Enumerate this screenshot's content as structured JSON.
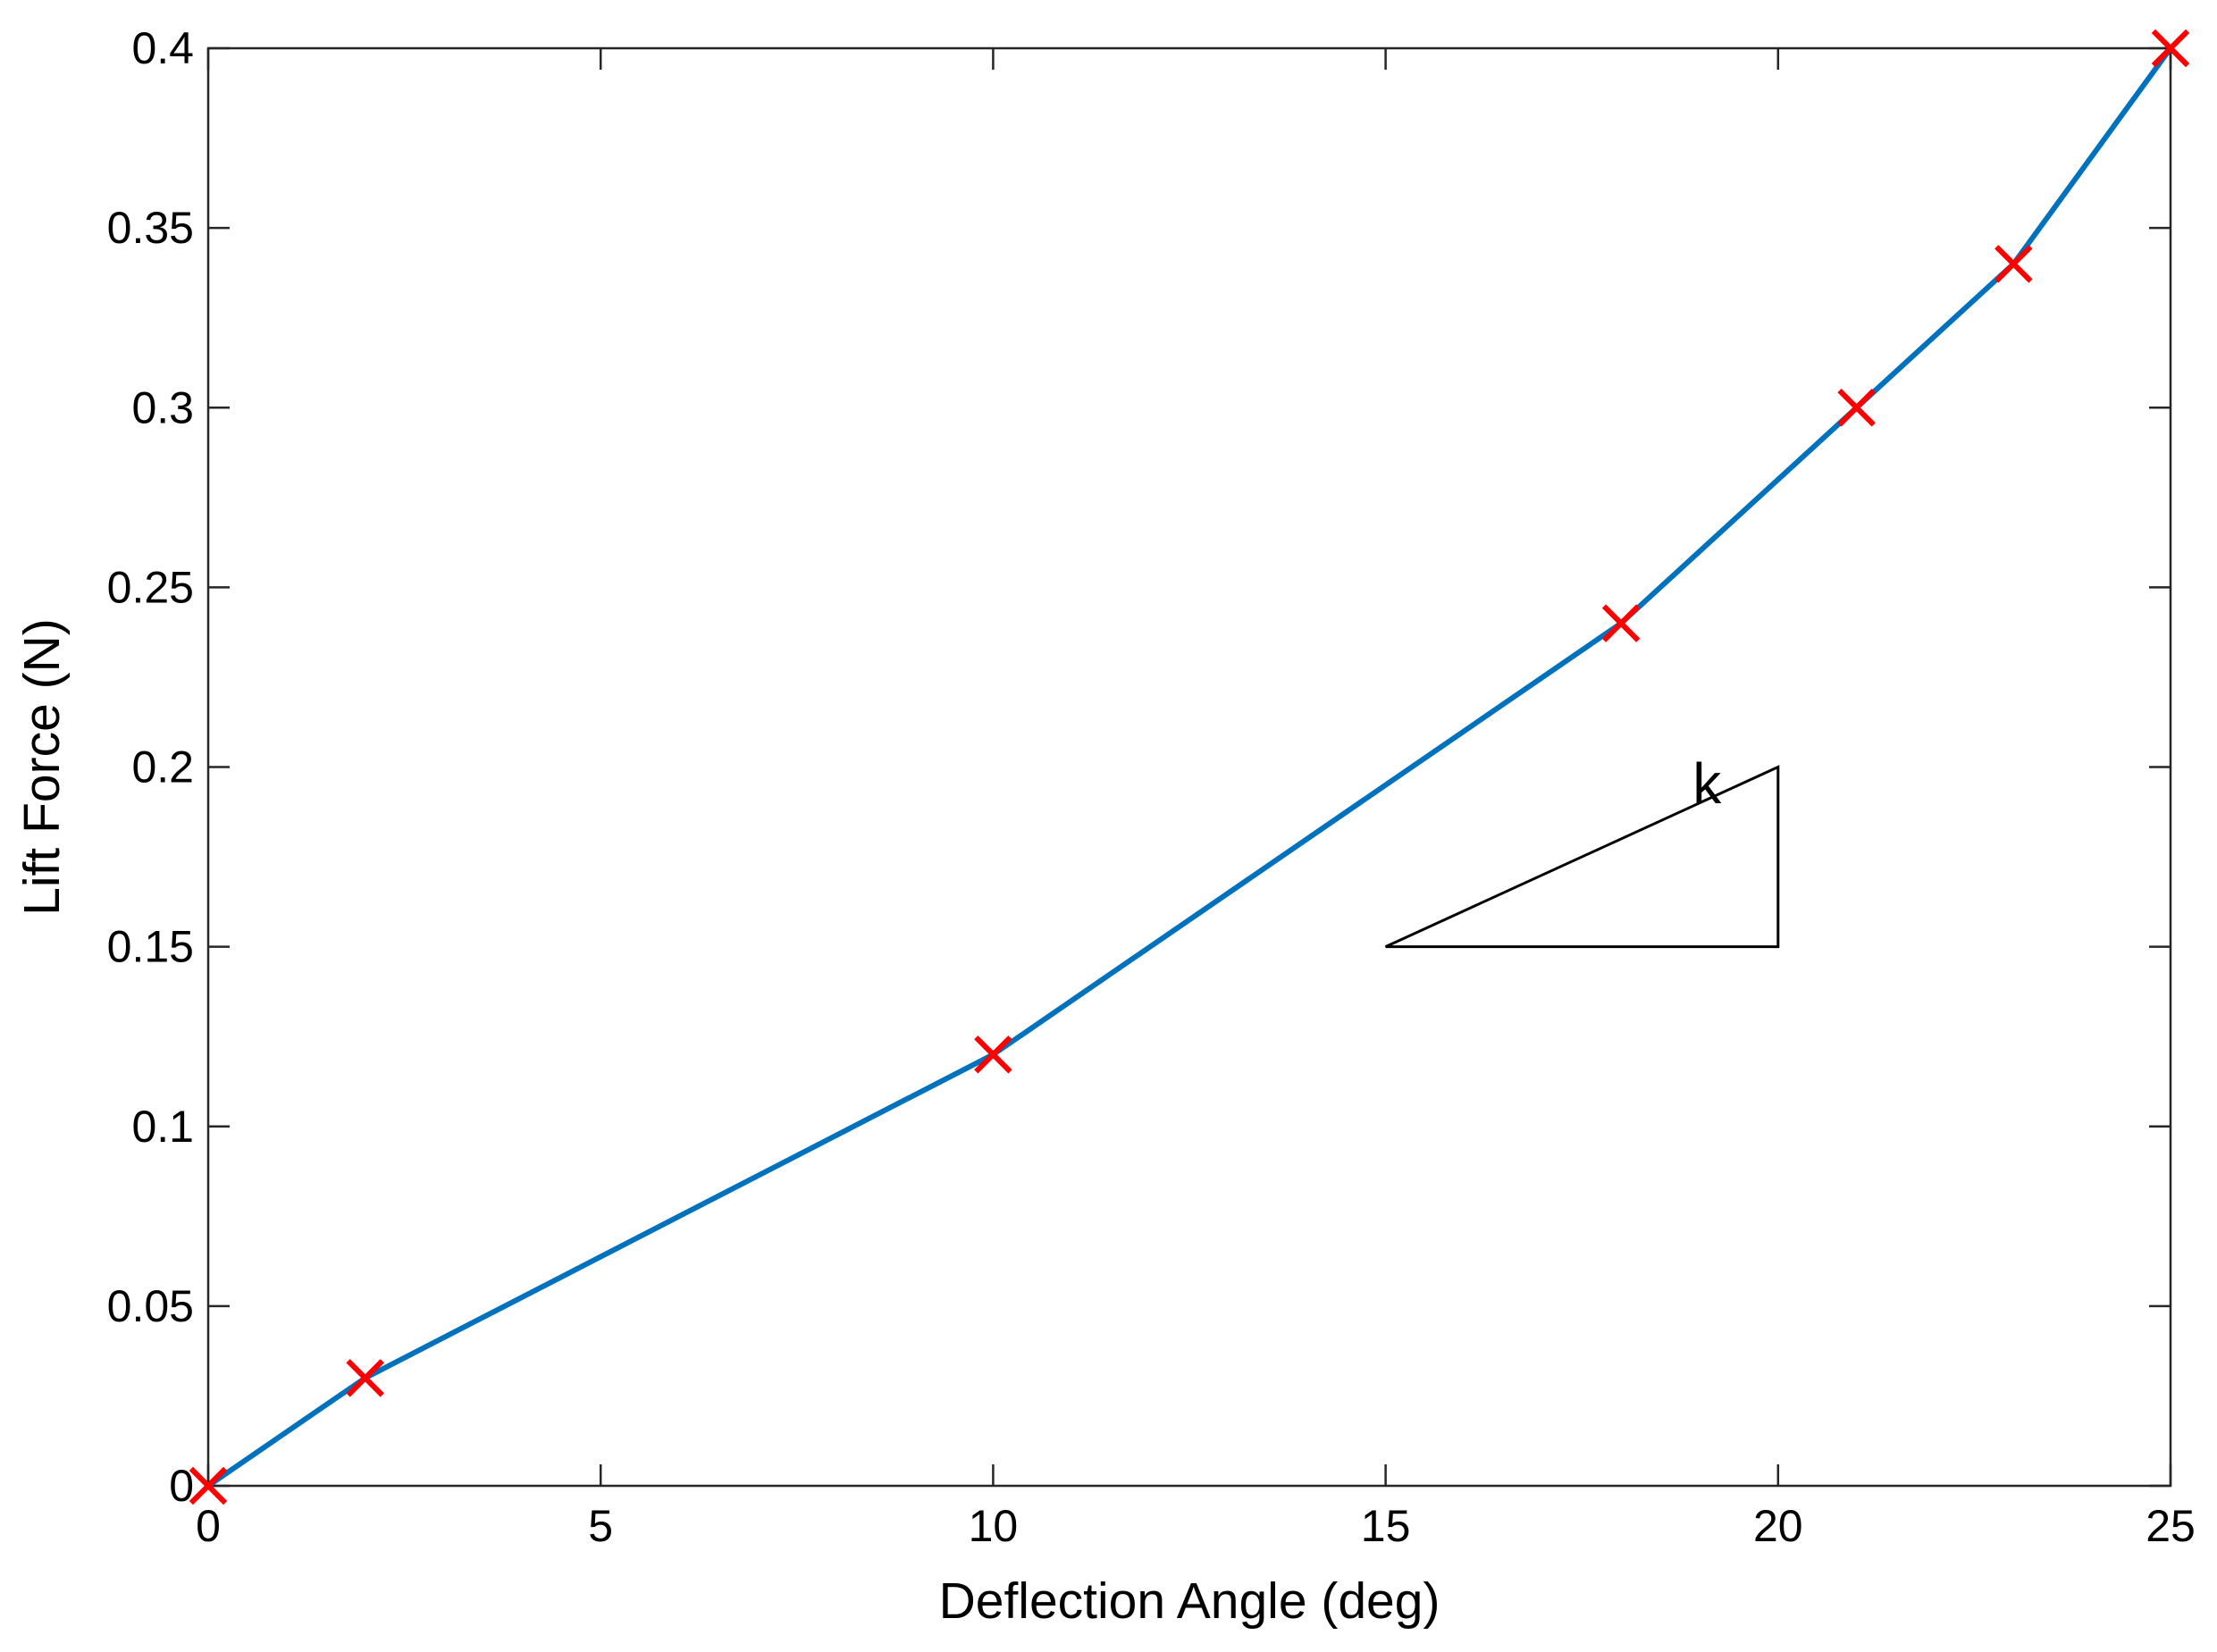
{
  "chart_data": {
    "type": "line",
    "title": "",
    "xlabel": "Deflection Angle (deg)",
    "ylabel": "Lift Force (N)",
    "xlim": [
      0,
      25
    ],
    "ylim": [
      0,
      0.4
    ],
    "xticks": [
      0,
      5,
      10,
      15,
      20,
      25
    ],
    "xtick_labels": [
      "0",
      "5",
      "10",
      "15",
      "20",
      "25"
    ],
    "yticks": [
      0,
      0.05,
      0.1,
      0.15,
      0.2,
      0.25,
      0.3,
      0.35,
      0.4
    ],
    "ytick_labels": [
      "0",
      "0.05",
      "0.1",
      "0.15",
      "0.2",
      "0.25",
      "0.3",
      "0.35",
      "0.4"
    ],
    "grid": false,
    "legend": "none",
    "series": [
      {
        "style": "line",
        "color": "#0072BD",
        "x": [
          0,
          2,
          10,
          18,
          21,
          23,
          25
        ],
        "y": [
          0,
          0.03,
          0.12,
          0.24,
          0.3,
          0.34,
          0.4
        ]
      },
      {
        "style": "markers",
        "marker": "x",
        "color": "#FF0000",
        "x": [
          0,
          2,
          10,
          18,
          21,
          23,
          25
        ],
        "y": [
          0,
          0.03,
          0.12,
          0.24,
          0.3,
          0.34,
          0.4
        ]
      }
    ],
    "annotations": [
      {
        "type": "slope-triangle",
        "label": "k",
        "x": [
          15,
          20
        ],
        "y": [
          0.15,
          0.2
        ]
      }
    ]
  }
}
